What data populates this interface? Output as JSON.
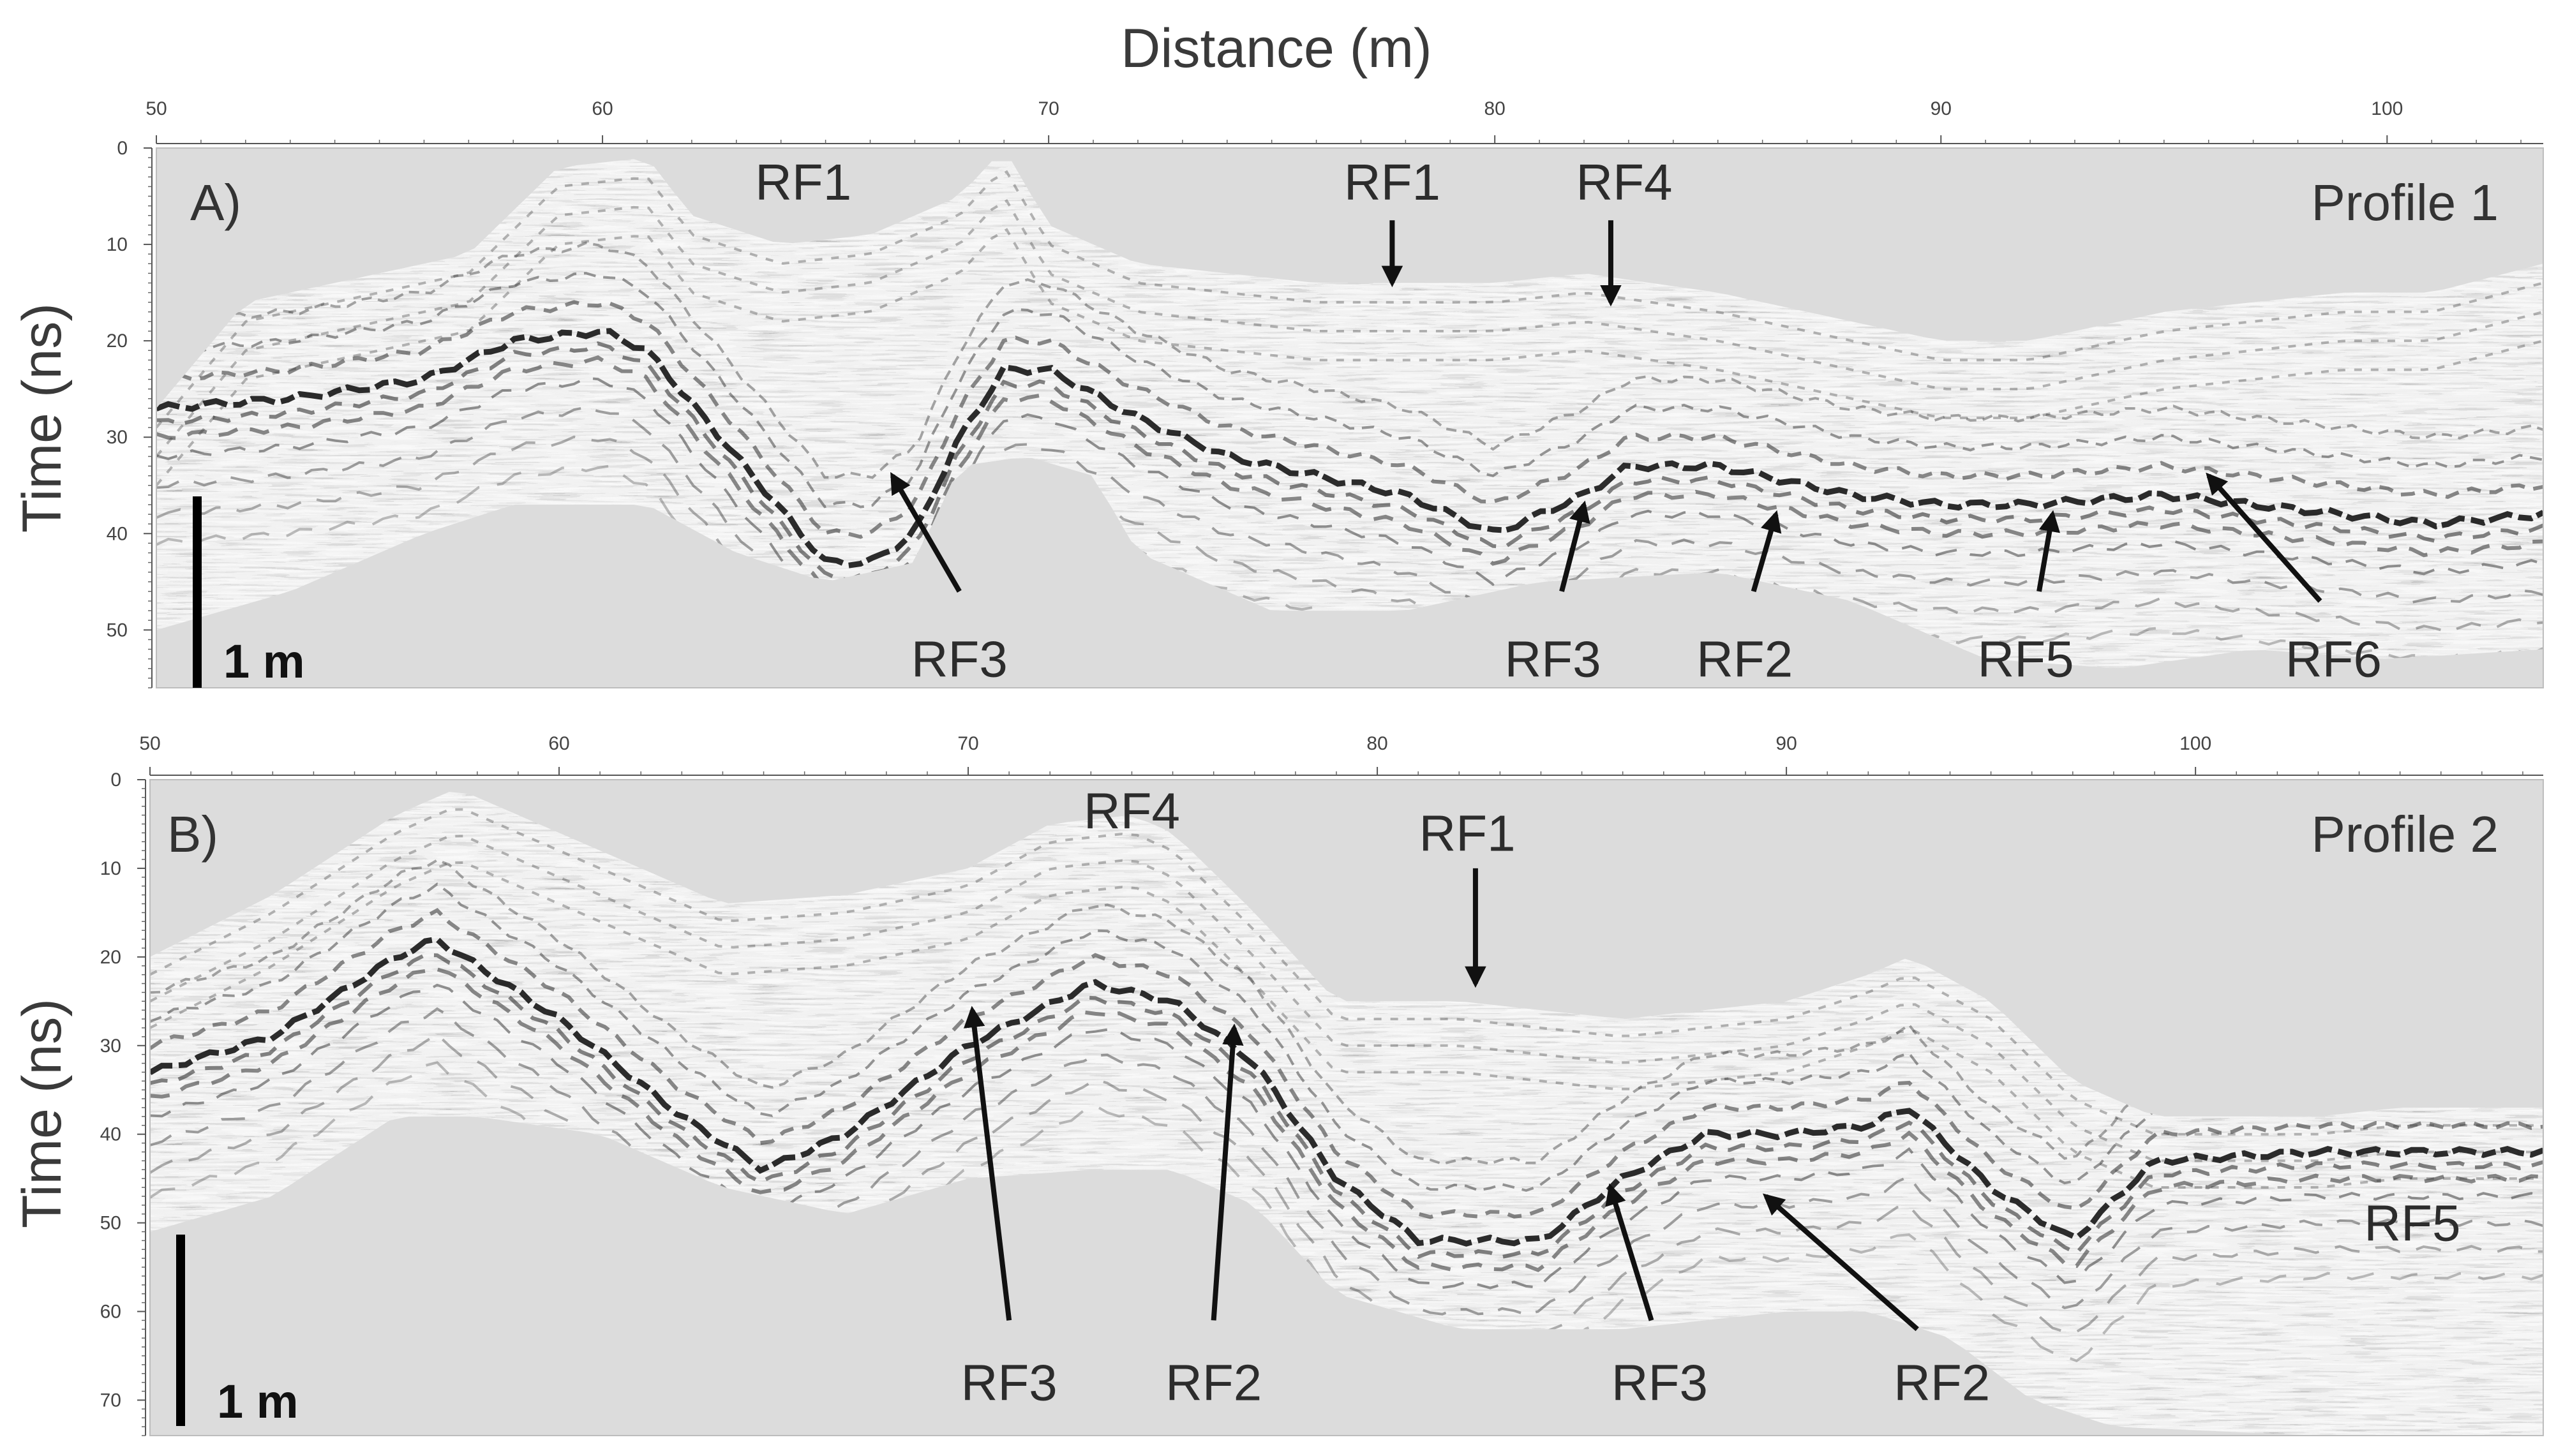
{
  "figure": {
    "title": "Distance (m)",
    "colors": {
      "background": "#dcdcdc",
      "trace_dark": "#111111",
      "trace_mid": "#6a6a6a",
      "arrow": "#111111"
    }
  },
  "panels": [
    {
      "id": "A",
      "letter": "A)",
      "profile_label": "Profile 1",
      "y_label": "Time (ns)",
      "scale_label": "1 m",
      "x_ticks": [
        "50",
        "60",
        "70",
        "80",
        "90",
        "100"
      ],
      "y_ticks": [
        "0",
        "10",
        "20",
        "30",
        "40",
        "50"
      ],
      "x_range": [
        50,
        103.5
      ],
      "y_range": [
        0,
        56
      ],
      "annotations": [
        {
          "text": "RF1",
          "x": 64.5,
          "t": 3.5
        },
        {
          "text": "RF1",
          "x": 77.7,
          "t": 3.5,
          "arrow_from": [
            77.7,
            7.5
          ],
          "arrow_to": [
            77.7,
            14
          ]
        },
        {
          "text": "RF4",
          "x": 82.9,
          "t": 3.5,
          "arrow_from": [
            82.6,
            7.5
          ],
          "arrow_to": [
            82.6,
            16
          ]
        },
        {
          "text": "RF3",
          "x": 68.0,
          "t": 53,
          "arrow_from": [
            68.0,
            46
          ],
          "arrow_to": [
            66.5,
            34
          ]
        },
        {
          "text": "RF3",
          "x": 81.3,
          "t": 53,
          "arrow_from": [
            81.5,
            46
          ],
          "arrow_to": [
            82.0,
            37
          ]
        },
        {
          "text": "RF2",
          "x": 85.6,
          "t": 53,
          "arrow_from": [
            85.8,
            46
          ],
          "arrow_to": [
            86.3,
            38
          ]
        },
        {
          "text": "RF5",
          "x": 91.9,
          "t": 53,
          "arrow_from": [
            92.2,
            46
          ],
          "arrow_to": [
            92.5,
            38
          ]
        },
        {
          "text": "RF6",
          "x": 98.8,
          "t": 53,
          "arrow_from": [
            98.5,
            47
          ],
          "arrow_to": [
            96.0,
            34
          ]
        }
      ]
    },
    {
      "id": "B",
      "letter": "B)",
      "profile_label": "Profile 2",
      "y_label": "Time (ns)",
      "scale_label": "1 m",
      "x_ticks": [
        "50",
        "60",
        "70",
        "80",
        "90",
        "100"
      ],
      "y_ticks": [
        "0",
        "10",
        "20",
        "30",
        "40",
        "50",
        "60",
        "70"
      ],
      "x_range": [
        50,
        108.5
      ],
      "y_range": [
        0,
        74
      ],
      "annotations": [
        {
          "text": "RF4",
          "x": 74.0,
          "t": 3.5
        },
        {
          "text": "RF1",
          "x": 82.2,
          "t": 6,
          "arrow_from": [
            82.4,
            10
          ],
          "arrow_to": [
            82.4,
            23
          ]
        },
        {
          "text": "RF5",
          "x": 105.3,
          "t": 50
        },
        {
          "text": "RF3",
          "x": 71.0,
          "t": 68,
          "arrow_from": [
            71.0,
            61
          ],
          "arrow_to": [
            70.1,
            26
          ]
        },
        {
          "text": "RF2",
          "x": 76.0,
          "t": 68,
          "arrow_from": [
            76.0,
            61
          ],
          "arrow_to": [
            76.5,
            28
          ]
        },
        {
          "text": "RF3",
          "x": 86.9,
          "t": 68,
          "arrow_from": [
            86.7,
            61
          ],
          "arrow_to": [
            85.7,
            46
          ]
        },
        {
          "text": "RF2",
          "x": 93.8,
          "t": 68,
          "arrow_from": [
            93.2,
            62
          ],
          "arrow_to": [
            89.5,
            47
          ]
        }
      ]
    }
  ]
}
